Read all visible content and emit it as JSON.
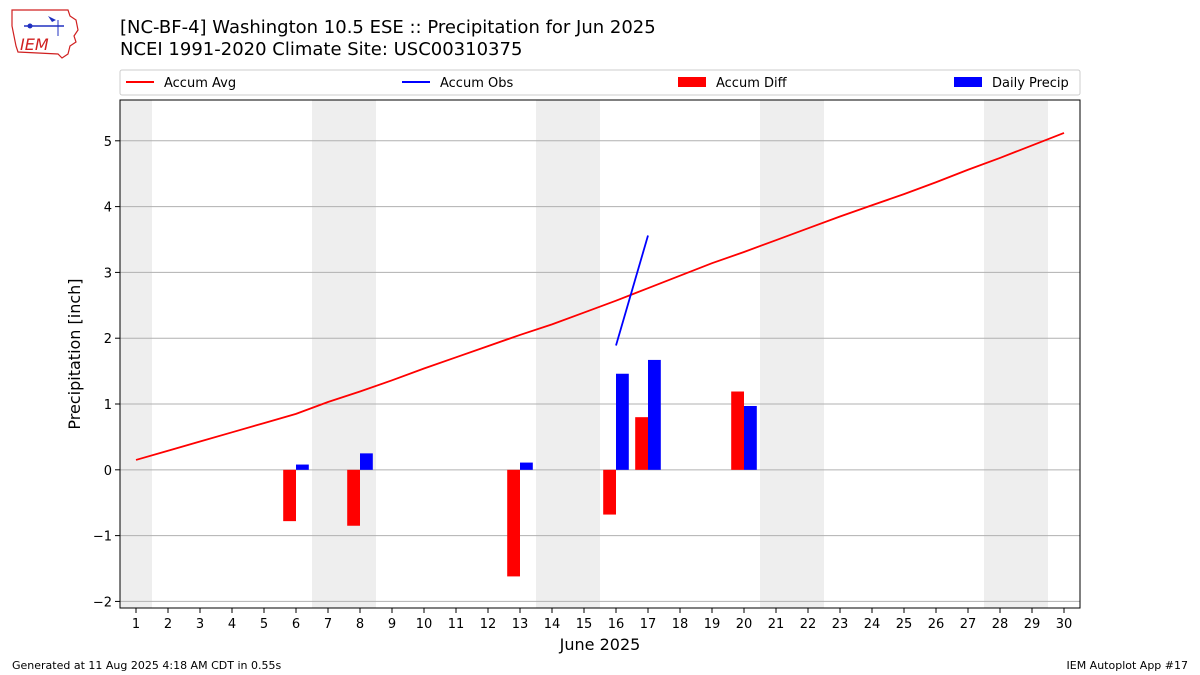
{
  "header": {
    "title_line1": "[NC-BF-4] Washington 10.5 ESE :: Precipitation for Jun 2025",
    "title_line2": "NCEI 1991-2020 Climate Site: USC00310375",
    "logo_text": "IEM"
  },
  "footer": {
    "left": "Generated at 11 Aug 2025 4:18 AM CDT in 0.55s",
    "right": "IEM Autoplot App #17"
  },
  "colors": {
    "accum_avg": "#ff0000",
    "accum_obs": "#0000ff",
    "accum_diff": "#ff0000",
    "daily_precip": "#0000ff",
    "weekend_band": "#eeeeee",
    "grid": "#b0b0b0"
  },
  "chart_data": {
    "type": "bar",
    "xlabel": "June 2025",
    "ylabel": "Precipitation [inch]",
    "x": [
      1,
      2,
      3,
      4,
      5,
      6,
      7,
      8,
      9,
      10,
      11,
      12,
      13,
      14,
      15,
      16,
      17,
      18,
      19,
      20,
      21,
      22,
      23,
      24,
      25,
      26,
      27,
      28,
      29,
      30
    ],
    "xlim": [
      0.5,
      30.5
    ],
    "ylim": [
      -2.1,
      5.62
    ],
    "yticks": [
      -2,
      -1,
      0,
      1,
      2,
      3,
      4,
      5
    ],
    "ytick_labels": [
      "−2",
      "−1",
      "0",
      "1",
      "2",
      "3",
      "4",
      "5"
    ],
    "grid": "horizontal",
    "legend_position": "top",
    "weekend_bands": [
      [
        0.5,
        1.5
      ],
      [
        6.5,
        8.5
      ],
      [
        13.5,
        15.5
      ],
      [
        20.5,
        22.5
      ],
      [
        27.5,
        29.5
      ]
    ],
    "series": [
      {
        "name": "Accum Avg",
        "kind": "line",
        "x": [
          1,
          2,
          3,
          4,
          5,
          6,
          7,
          8,
          9,
          10,
          11,
          12,
          13,
          14,
          15,
          16,
          17,
          18,
          19,
          20,
          21,
          22,
          23,
          24,
          25,
          26,
          27,
          28,
          29,
          30
        ],
        "values": [
          0.15,
          0.29,
          0.43,
          0.57,
          0.71,
          0.85,
          1.03,
          1.19,
          1.36,
          1.54,
          1.71,
          1.88,
          2.05,
          2.21,
          2.39,
          2.57,
          2.76,
          2.95,
          3.14,
          3.31,
          3.49,
          3.67,
          3.85,
          4.02,
          4.19,
          4.37,
          4.56,
          4.74,
          4.93,
          5.12
        ]
      },
      {
        "name": "Accum Obs",
        "kind": "line",
        "x": [
          16,
          17
        ],
        "values": [
          1.89,
          3.56
        ]
      },
      {
        "name": "Accum Diff",
        "kind": "bar",
        "x": [
          6,
          8,
          13,
          16,
          17,
          20
        ],
        "values": [
          -0.78,
          -0.85,
          -1.62,
          -0.68,
          0.8,
          1.19
        ]
      },
      {
        "name": "Daily Precip",
        "kind": "bar",
        "x": [
          6,
          8,
          13,
          16,
          17,
          20
        ],
        "values": [
          0.08,
          0.25,
          0.11,
          1.46,
          1.67,
          0.97
        ]
      }
    ]
  }
}
